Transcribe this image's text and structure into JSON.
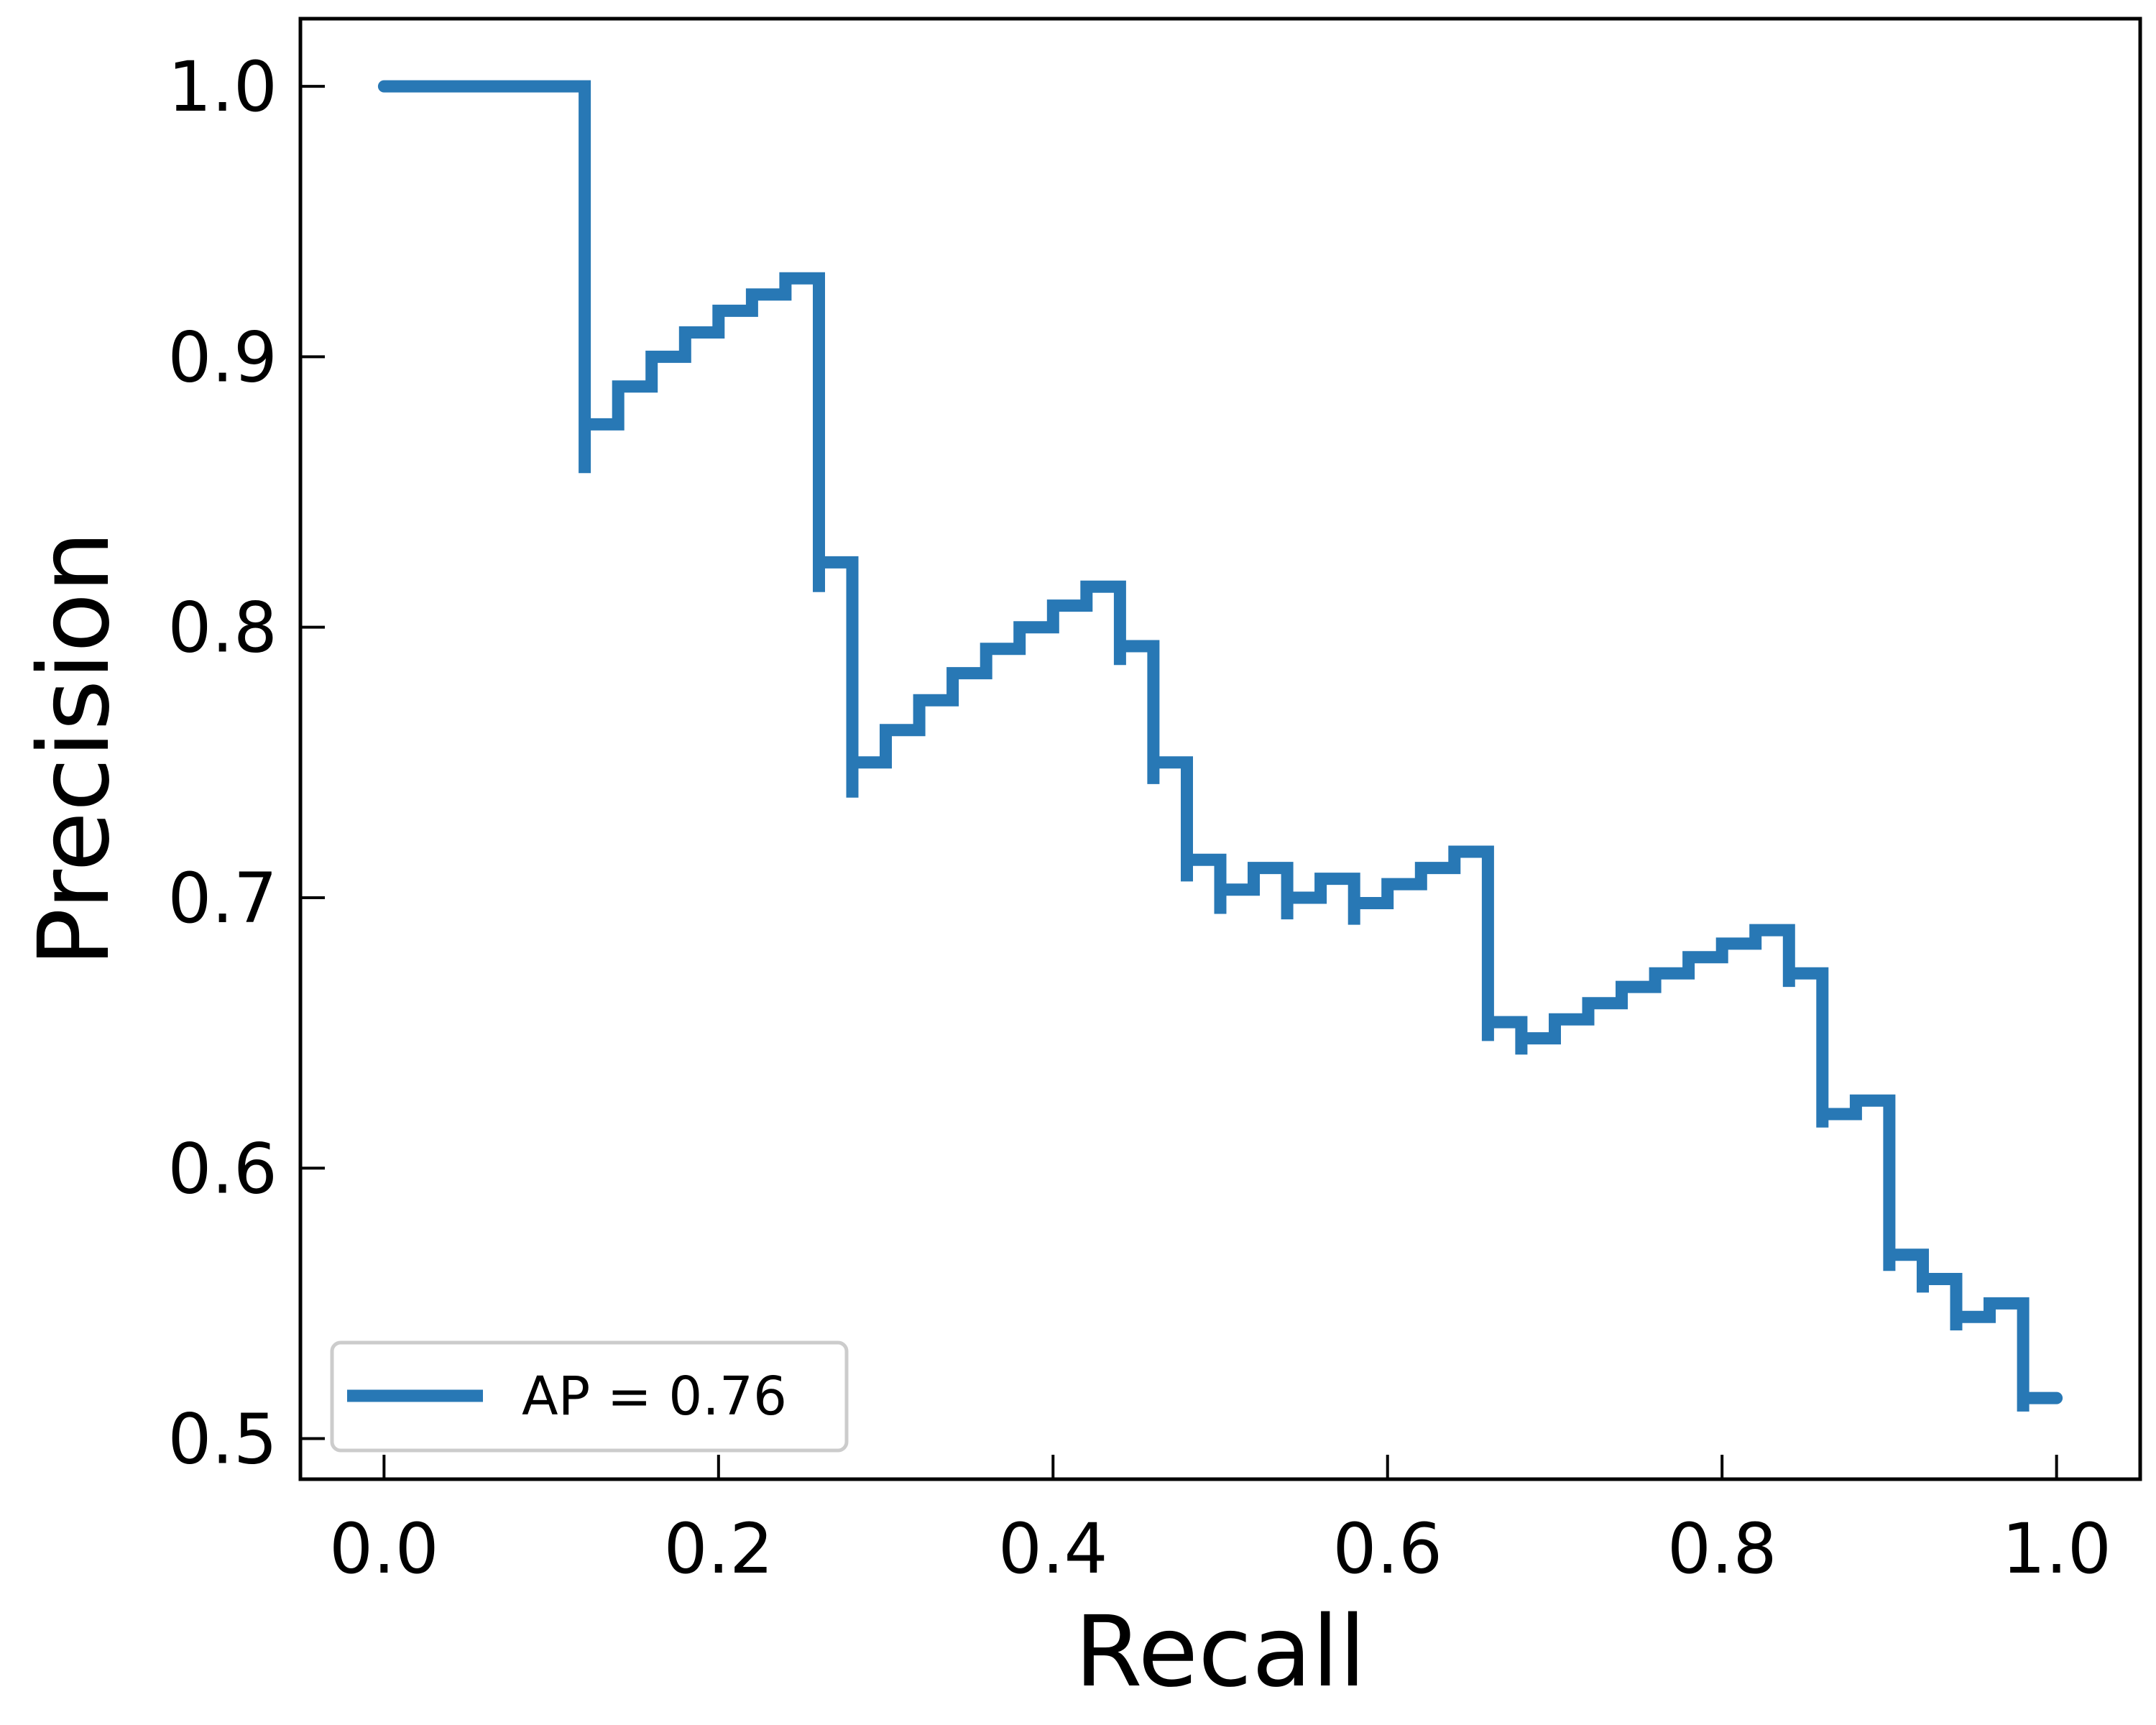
{
  "chart_data": {
    "type": "line",
    "drawstyle": "steps-post",
    "xlabel": "Recall",
    "ylabel": "Precision",
    "xlim": [
      -0.05,
      1.05
    ],
    "ylim": [
      0.485,
      1.025
    ],
    "xticks": [
      0.0,
      0.2,
      0.4,
      0.6,
      0.8,
      1.0
    ],
    "xtick_labels": [
      "0.0",
      "0.2",
      "0.4",
      "0.6",
      "0.8",
      "1.0"
    ],
    "yticks": [
      0.5,
      0.6,
      0.7,
      0.8,
      0.9,
      1.0
    ],
    "ytick_labels": [
      "0.5",
      "0.6",
      "0.7",
      "0.8",
      "0.9",
      "1.0"
    ],
    "grid": false,
    "legend_position": "lower-left",
    "series": [
      {
        "name": "AP = 0.76",
        "color": "#2878b5",
        "points": [
          [
            0.0,
            1.0
          ],
          [
            0.12,
            1.0
          ],
          [
            0.12,
            0.857
          ],
          [
            0.12,
            0.875
          ],
          [
            0.14,
            0.875
          ],
          [
            0.14,
            0.889
          ],
          [
            0.16,
            0.889
          ],
          [
            0.16,
            0.9
          ],
          [
            0.18,
            0.9
          ],
          [
            0.18,
            0.909
          ],
          [
            0.2,
            0.909
          ],
          [
            0.2,
            0.917
          ],
          [
            0.22,
            0.917
          ],
          [
            0.22,
            0.923
          ],
          [
            0.24,
            0.923
          ],
          [
            0.24,
            0.929
          ],
          [
            0.26,
            0.929
          ],
          [
            0.26,
            0.813
          ],
          [
            0.26,
            0.824
          ],
          [
            0.28,
            0.824
          ],
          [
            0.28,
            0.737
          ],
          [
            0.28,
            0.75
          ],
          [
            0.3,
            0.75
          ],
          [
            0.3,
            0.762
          ],
          [
            0.32,
            0.762
          ],
          [
            0.32,
            0.773
          ],
          [
            0.34,
            0.773
          ],
          [
            0.34,
            0.783
          ],
          [
            0.36,
            0.783
          ],
          [
            0.36,
            0.792
          ],
          [
            0.38,
            0.792
          ],
          [
            0.38,
            0.8
          ],
          [
            0.4,
            0.8
          ],
          [
            0.4,
            0.808
          ],
          [
            0.42,
            0.808
          ],
          [
            0.42,
            0.815
          ],
          [
            0.44,
            0.815
          ],
          [
            0.44,
            0.786
          ],
          [
            0.44,
            0.793
          ],
          [
            0.46,
            0.793
          ],
          [
            0.46,
            0.742
          ],
          [
            0.46,
            0.75
          ],
          [
            0.48,
            0.75
          ],
          [
            0.48,
            0.706
          ],
          [
            0.48,
            0.714
          ],
          [
            0.5,
            0.714
          ],
          [
            0.5,
            0.694
          ],
          [
            0.5,
            0.703
          ],
          [
            0.52,
            0.703
          ],
          [
            0.52,
            0.711
          ],
          [
            0.54,
            0.711
          ],
          [
            0.54,
            0.692
          ],
          [
            0.54,
            0.7
          ],
          [
            0.56,
            0.7
          ],
          [
            0.56,
            0.707
          ],
          [
            0.58,
            0.707
          ],
          [
            0.58,
            0.69
          ],
          [
            0.58,
            0.698
          ],
          [
            0.6,
            0.698
          ],
          [
            0.6,
            0.705
          ],
          [
            0.62,
            0.705
          ],
          [
            0.62,
            0.711
          ],
          [
            0.64,
            0.711
          ],
          [
            0.64,
            0.717
          ],
          [
            0.66,
            0.717
          ],
          [
            0.66,
            0.647
          ],
          [
            0.66,
            0.654
          ],
          [
            0.68,
            0.654
          ],
          [
            0.68,
            0.642
          ],
          [
            0.68,
            0.648
          ],
          [
            0.7,
            0.648
          ],
          [
            0.7,
            0.655
          ],
          [
            0.72,
            0.655
          ],
          [
            0.72,
            0.661
          ],
          [
            0.74,
            0.661
          ],
          [
            0.74,
            0.667
          ],
          [
            0.76,
            0.667
          ],
          [
            0.76,
            0.672
          ],
          [
            0.78,
            0.672
          ],
          [
            0.78,
            0.678
          ],
          [
            0.8,
            0.678
          ],
          [
            0.8,
            0.683
          ],
          [
            0.82,
            0.683
          ],
          [
            0.82,
            0.688
          ],
          [
            0.84,
            0.688
          ],
          [
            0.84,
            0.667
          ],
          [
            0.84,
            0.672
          ],
          [
            0.86,
            0.672
          ],
          [
            0.86,
            0.615
          ],
          [
            0.86,
            0.62
          ],
          [
            0.88,
            0.62
          ],
          [
            0.88,
            0.625
          ],
          [
            0.9,
            0.625
          ],
          [
            0.9,
            0.562
          ],
          [
            0.9,
            0.568
          ],
          [
            0.92,
            0.568
          ],
          [
            0.92,
            0.554
          ],
          [
            0.92,
            0.559
          ],
          [
            0.94,
            0.559
          ],
          [
            0.94,
            0.54
          ],
          [
            0.94,
            0.545
          ],
          [
            0.96,
            0.545
          ],
          [
            0.96,
            0.55
          ],
          [
            0.98,
            0.55
          ],
          [
            0.98,
            0.51
          ],
          [
            0.98,
            0.515
          ],
          [
            1.0,
            0.515
          ]
        ]
      }
    ]
  }
}
